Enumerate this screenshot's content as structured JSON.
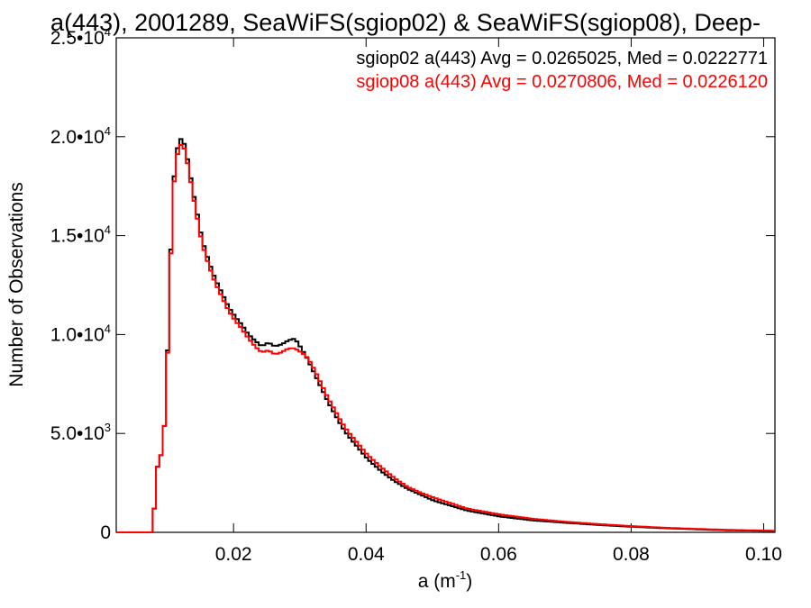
{
  "chart_data": {
    "type": "line",
    "title": "a(443), 2001289, SeaWiFS(sgiop02) & SeaWiFS(sgiop08), Deep-",
    "xlabel_base": "a (m",
    "xlabel_exp": "-1",
    "xlabel_close": ")",
    "ylabel": "Number of Observations",
    "xlim": [
      0.0023,
      0.1017
    ],
    "ylim": [
      0,
      25000
    ],
    "grid": false,
    "legend_position": "top-right",
    "x_ticks": [
      {
        "value": 0.02,
        "label": "0.02"
      },
      {
        "value": 0.04,
        "label": "0.04"
      },
      {
        "value": 0.06,
        "label": "0.06"
      },
      {
        "value": 0.08,
        "label": "0.08"
      },
      {
        "value": 0.1,
        "label": "0.10"
      }
    ],
    "y_ticks": [
      {
        "value": 0,
        "mantissa": "0",
        "exp": ""
      },
      {
        "value": 5000,
        "mantissa": "5.0•10",
        "exp": "3"
      },
      {
        "value": 10000,
        "mantissa": "1.0•10",
        "exp": "4"
      },
      {
        "value": 15000,
        "mantissa": "1.5•10",
        "exp": "4"
      },
      {
        "value": 20000,
        "mantissa": "2.0•10",
        "exp": "4"
      },
      {
        "value": 25000,
        "mantissa": "2.5•10",
        "exp": "4"
      }
    ],
    "series": [
      {
        "name": "sgiop02 a(443) Avg = 0.0265025, Med = 0.0222771",
        "color": "#000000",
        "x": [
          0.0023,
          0.0075,
          0.008,
          0.0085,
          0.009,
          0.0095,
          0.01,
          0.0105,
          0.011,
          0.0115,
          0.012,
          0.0125,
          0.013,
          0.0135,
          0.014,
          0.015,
          0.016,
          0.017,
          0.018,
          0.019,
          0.02,
          0.021,
          0.022,
          0.023,
          0.024,
          0.025,
          0.026,
          0.027,
          0.028,
          0.029,
          0.03,
          0.031,
          0.032,
          0.033,
          0.034,
          0.035,
          0.036,
          0.037,
          0.038,
          0.039,
          0.04,
          0.042,
          0.044,
          0.046,
          0.048,
          0.05,
          0.055,
          0.06,
          0.065,
          0.07,
          0.075,
          0.08,
          0.085,
          0.09,
          0.095,
          0.1,
          0.1017
        ],
        "values": [
          0,
          0,
          2000,
          4200,
          3700,
          6500,
          11000,
          16500,
          19000,
          19700,
          20000,
          19400,
          18500,
          17500,
          16600,
          14800,
          13700,
          12800,
          12100,
          11400,
          10900,
          10500,
          10000,
          9700,
          9400,
          9600,
          9400,
          9500,
          9700,
          9800,
          9300,
          8700,
          8000,
          7300,
          6600,
          6000,
          5400,
          4900,
          4500,
          4100,
          3700,
          3100,
          2600,
          2200,
          1900,
          1600,
          1100,
          800,
          600,
          480,
          370,
          280,
          210,
          150,
          100,
          80,
          60
        ]
      },
      {
        "name": "sgiop08 a(443) Avg = 0.0270806, Med = 0.0226120",
        "color": "#ff0000",
        "x": [
          0.0023,
          0.0075,
          0.008,
          0.0085,
          0.009,
          0.0095,
          0.01,
          0.0105,
          0.011,
          0.0115,
          0.012,
          0.0125,
          0.013,
          0.0135,
          0.014,
          0.015,
          0.016,
          0.017,
          0.018,
          0.019,
          0.02,
          0.021,
          0.022,
          0.023,
          0.024,
          0.025,
          0.026,
          0.027,
          0.028,
          0.029,
          0.03,
          0.031,
          0.032,
          0.033,
          0.034,
          0.035,
          0.036,
          0.037,
          0.038,
          0.039,
          0.04,
          0.042,
          0.044,
          0.046,
          0.048,
          0.05,
          0.055,
          0.06,
          0.065,
          0.07,
          0.075,
          0.08,
          0.085,
          0.09,
          0.095,
          0.1,
          0.1017
        ],
        "values": [
          0,
          0,
          2000,
          4200,
          3700,
          6500,
          10800,
          16300,
          18700,
          19400,
          19700,
          19200,
          18300,
          17300,
          16400,
          14600,
          13500,
          12600,
          11900,
          11200,
          10700,
          10300,
          9800,
          9400,
          9100,
          9200,
          9000,
          9100,
          9300,
          9300,
          9100,
          8800,
          8200,
          7500,
          6800,
          6200,
          5600,
          5100,
          4700,
          4300,
          3900,
          3300,
          2750,
          2300,
          2000,
          1750,
          1200,
          900,
          680,
          530,
          410,
          310,
          230,
          170,
          120,
          90,
          70
        ]
      }
    ]
  }
}
